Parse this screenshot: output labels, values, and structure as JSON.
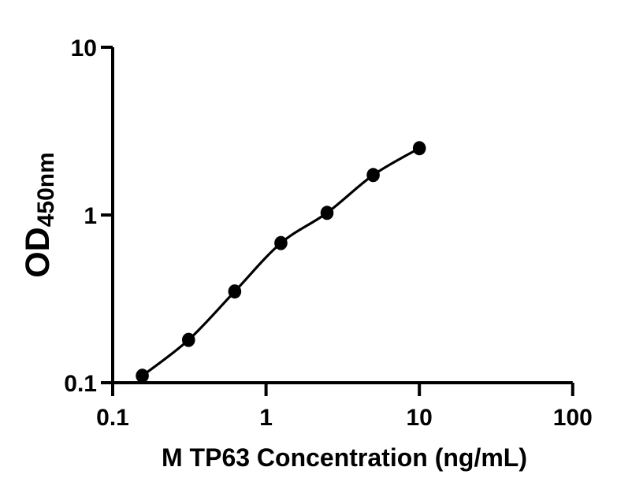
{
  "figure": {
    "background_color": "#ffffff",
    "axis_color": "#000000",
    "text_color": "#000000",
    "marker_color": "#000000",
    "curve_color": "#000000"
  },
  "chart_data": {
    "type": "scatter",
    "subtype": "standard-curve-with-fit-line",
    "title": "",
    "xlabel": "M TP63 Concentration (ng/mL)",
    "ylabel": "OD",
    "ylabel_subscript": "450nm",
    "x_scale": "log",
    "y_scale": "log",
    "xlim": [
      0.1,
      100
    ],
    "ylim": [
      0.1,
      10
    ],
    "grid": false,
    "legend": false,
    "x_ticks": [
      {
        "value": 0.1,
        "label": "0.1"
      },
      {
        "value": 1,
        "label": "1"
      },
      {
        "value": 10,
        "label": "10"
      },
      {
        "value": 100,
        "label": "100"
      }
    ],
    "y_ticks": [
      {
        "value": 10,
        "label": "10"
      },
      {
        "value": 1,
        "label": "1"
      },
      {
        "value": 0.1,
        "label": "0.1"
      }
    ],
    "series": [
      {
        "marker": "filled-circle",
        "line": "smooth-fit",
        "points": [
          {
            "x": 0.156,
            "y": 0.11
          },
          {
            "x": 0.3125,
            "y": 0.18
          },
          {
            "x": 0.625,
            "y": 0.35
          },
          {
            "x": 1.25,
            "y": 0.68
          },
          {
            "x": 2.5,
            "y": 1.03
          },
          {
            "x": 5,
            "y": 1.73
          },
          {
            "x": 10,
            "y": 2.5
          }
        ]
      }
    ]
  }
}
